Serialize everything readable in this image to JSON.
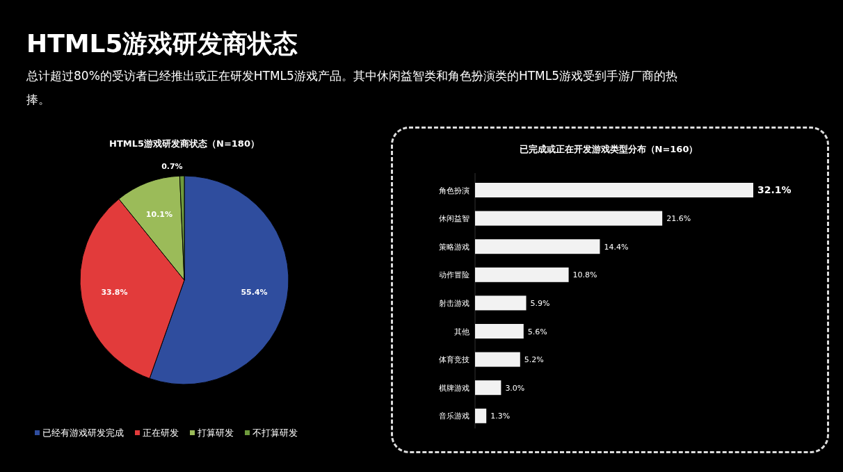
{
  "chart_data": [
    {
      "type": "other",
      "title": "HTML5游戏研发商状态",
      "subtitle": "总计超过80%的受访者已经推出或正在研发HTML5游戏产品。其中休闲益智类和角色扮演类的HTML5游戏受到手游厂商的热捧。"
    },
    {
      "type": "pie",
      "title": "HTML5游戏研发商状态（N=180）",
      "categories": [
        "已经有游戏研发完成",
        "正在研发",
        "打算研发",
        "不打算研发"
      ],
      "values": [
        55.4,
        33.8,
        10.1,
        0.7
      ],
      "value_labels": [
        "55.4%",
        "33.8%",
        "10.1%",
        "0.7%"
      ],
      "colors": [
        "#2f4d9e",
        "#e23b3b",
        "#9bbb59",
        "#6e9a3c"
      ],
      "legend": "bottom"
    },
    {
      "type": "bar",
      "orientation": "horizontal",
      "title": "已完成或正在开发游戏类型分布（N=160）",
      "categories": [
        "角色扮演",
        "休闲益智",
        "策略游戏",
        "动作冒险",
        "射击游戏",
        "其他",
        "体育竞技",
        "棋牌游戏",
        "音乐游戏"
      ],
      "values": [
        32.1,
        21.6,
        14.4,
        10.8,
        5.9,
        5.6,
        5.2,
        3.0,
        1.3
      ],
      "value_labels": [
        "32.1%",
        "21.6%",
        "14.4%",
        "10.8%",
        "5.9%",
        "5.6%",
        "5.2%",
        "3.0%",
        "1.3%"
      ],
      "color": "#f2f2f2"
    }
  ]
}
